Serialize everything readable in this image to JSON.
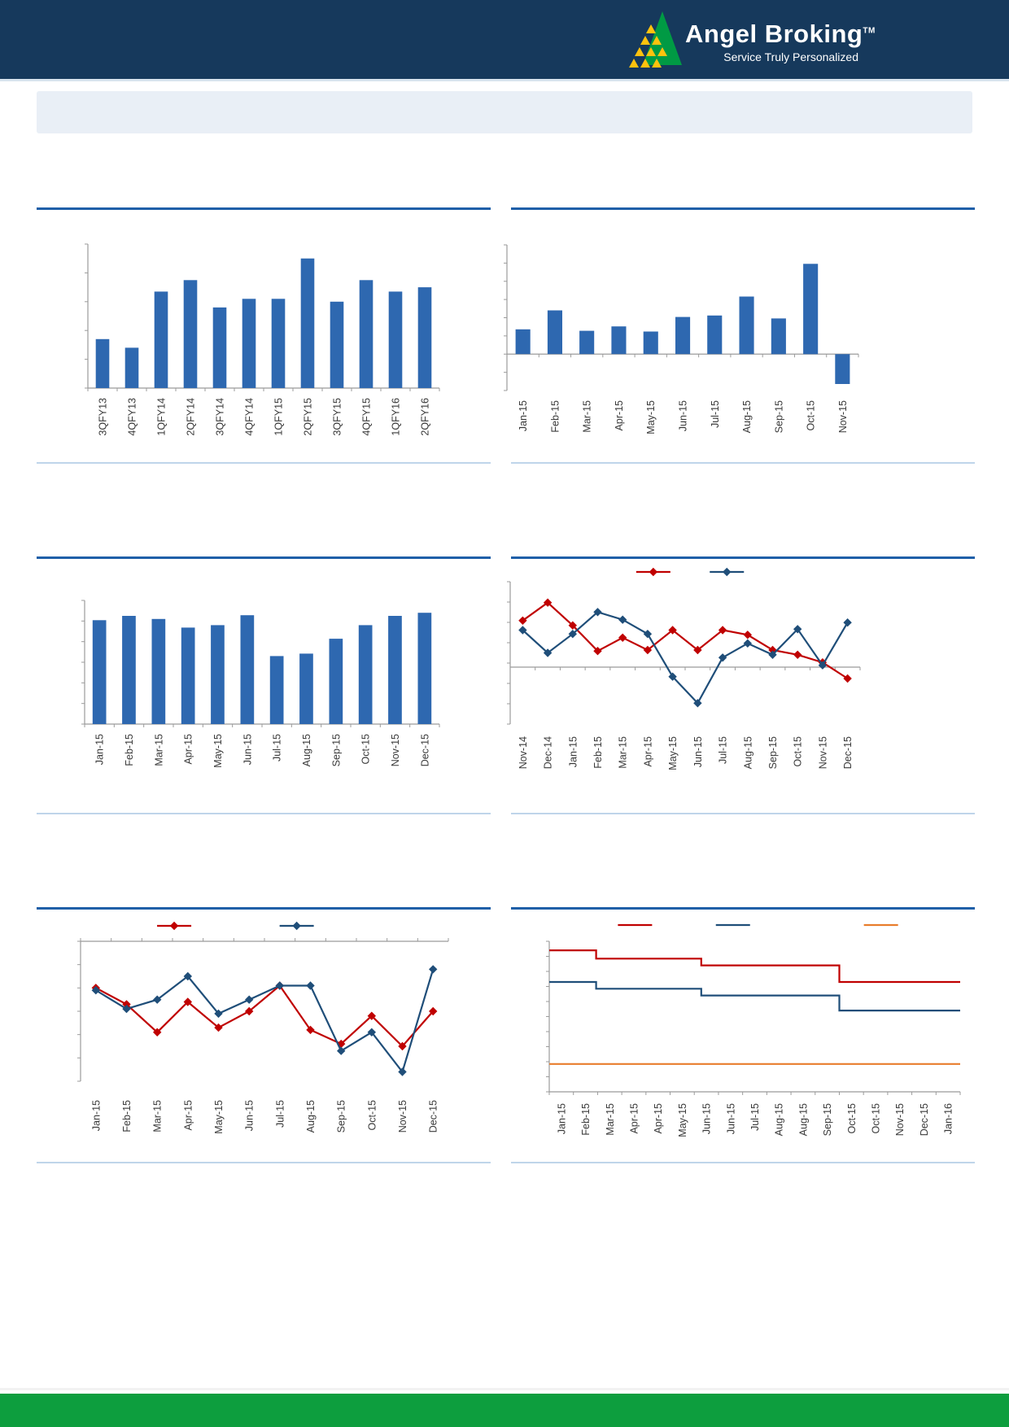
{
  "header": {
    "brand": "Angel Broking",
    "brand_tm": "TM",
    "tagline": "Service Truly Personalized"
  },
  "title_band": {
    "text": ""
  },
  "footer": {
    "text": ""
  },
  "colors": {
    "header_navy": "#16395C",
    "footer_green": "#0D9E3E",
    "bar": "#2E68B0",
    "red": "#C00000",
    "blue": "#1F4E79",
    "orange": "#E87D2C",
    "rule_dark": "#1F5FA8",
    "rule_light": "#BFD5EA",
    "axis": "#9B9B9B",
    "label": "#3A3A3A",
    "logo_green": "#009A44",
    "logo_yellow": "#FFC20E"
  },
  "chart_data": [
    {
      "type": "bar",
      "title": "",
      "source": "",
      "categories": [
        "3QFY13",
        "4QFY13",
        "1QFY14",
        "2QFY14",
        "3QFY14",
        "4QFY14",
        "1QFY15",
        "2QFY15",
        "3QFY15",
        "4QFY15",
        "1QFY16",
        "2QFY16"
      ],
      "values": [
        0.34,
        0.28,
        0.67,
        0.75,
        0.56,
        0.62,
        0.62,
        0.9,
        0.6,
        0.75,
        0.67,
        0.7
      ],
      "ylim": [
        0,
        1
      ],
      "xlabel": "",
      "ylabel": "",
      "y_tick_labels_visible": false,
      "grid": false,
      "legend_position": "none"
    },
    {
      "type": "bar",
      "title": "",
      "source": "",
      "categories": [
        "Jan-15",
        "Feb-15",
        "Mar-15",
        "Apr-15",
        "May-15",
        "Jun-15",
        "Jul-15",
        "Aug-15",
        "Sep-15",
        "Oct-15",
        "Nov-15"
      ],
      "values": [
        0.34,
        0.6,
        0.32,
        0.38,
        0.31,
        0.51,
        0.53,
        0.79,
        0.49,
        1.24,
        -0.41
      ],
      "ylim": [
        -0.5,
        1.5
      ],
      "xlabel": "",
      "ylabel": "",
      "y_tick_labels_visible": false,
      "grid": false,
      "legend_position": "none"
    },
    {
      "type": "bar",
      "title": "",
      "source": "",
      "categories": [
        "Jan-15",
        "Feb-15",
        "Mar-15",
        "Apr-15",
        "May-15",
        "Jun-15",
        "Jul-15",
        "Aug-15",
        "Sep-15",
        "Oct-15",
        "Nov-15",
        "Dec-15"
      ],
      "values": [
        0.84,
        0.875,
        0.85,
        0.78,
        0.8,
        0.88,
        0.55,
        0.57,
        0.69,
        0.8,
        0.875,
        0.9
      ],
      "ylim": [
        0,
        1
      ],
      "xlabel": "",
      "ylabel": "",
      "y_tick_labels_visible": false,
      "grid": false,
      "legend_position": "none"
    },
    {
      "type": "line",
      "title": "",
      "source": "",
      "categories": [
        "Nov-14",
        "Dec-14",
        "Jan-15",
        "Feb-15",
        "Mar-15",
        "Apr-15",
        "May-15",
        "Jun-15",
        "Jul-15",
        "Aug-15",
        "Sep-15",
        "Oct-15",
        "Nov-15",
        "Dec-15"
      ],
      "series": [
        {
          "name": "",
          "color": "red",
          "values": [
            0.49,
            0.68,
            0.44,
            0.17,
            0.31,
            0.18,
            0.39,
            0.18,
            0.39,
            0.34,
            0.18,
            0.13,
            0.05,
            -0.12
          ]
        },
        {
          "name": "",
          "color": "blue",
          "values": [
            0.39,
            0.15,
            0.35,
            0.58,
            0.5,
            0.35,
            -0.1,
            -0.38,
            0.1,
            0.25,
            0.13,
            0.4,
            0.02,
            0.47
          ]
        }
      ],
      "ylim": [
        -0.6,
        0.9
      ],
      "xlabel": "",
      "ylabel": "",
      "y_tick_labels_visible": false,
      "grid": false,
      "legend_position": "top",
      "legend_labels": [
        "",
        ""
      ]
    },
    {
      "type": "line",
      "title": "",
      "source": "",
      "categories": [
        "Jan-15",
        "Feb-15",
        "Mar-15",
        "Apr-15",
        "May-15",
        "Jun-15",
        "Jul-15",
        "Aug-15",
        "Sep-15",
        "Oct-15",
        "Nov-15",
        "Dec-15"
      ],
      "series": [
        {
          "name": "",
          "color": "red",
          "values": [
            -2.0,
            -2.7,
            -3.9,
            -2.6,
            -3.7,
            -3.0,
            -1.9,
            -3.8,
            -4.4,
            -3.2,
            -4.5,
            -3.0
          ]
        },
        {
          "name": "",
          "color": "blue",
          "values": [
            -2.1,
            -2.9,
            -2.5,
            -1.5,
            -3.1,
            -2.5,
            -1.9,
            -1.9,
            -4.7,
            -3.9,
            -5.6,
            -1.2
          ]
        }
      ],
      "ylim": [
        -6,
        0
      ],
      "category_axis": "top",
      "xlabel": "",
      "ylabel": "",
      "y_tick_labels_visible": false,
      "grid": false,
      "legend_position": "top",
      "legend_labels": [
        "",
        ""
      ]
    },
    {
      "type": "step",
      "title": "",
      "source": "",
      "categories": [
        "Jan-15",
        "Feb-15",
        "Mar-15",
        "Apr-15",
        "Apr-15",
        "May-15",
        "Jun-15",
        "Jun-15",
        "Jul-15",
        "Aug-15",
        "Aug-15",
        "Sep-15",
        "Oct-15",
        "Oct-15",
        "Nov-15",
        "Dec-15",
        "Jan-16"
      ],
      "series": [
        {
          "name": "",
          "color": "red",
          "breaks": [
            0.114,
            0.37,
            0.706
          ],
          "values": [
            9.4,
            8.85,
            8.4,
            7.3
          ]
        },
        {
          "name": "",
          "color": "blue",
          "breaks": [
            0.114,
            0.37,
            0.706
          ],
          "values": [
            7.3,
            6.85,
            6.4,
            5.4
          ]
        },
        {
          "name": "",
          "color": "orange",
          "breaks": [],
          "values": [
            1.85
          ]
        }
      ],
      "ylim": [
        0,
        10
      ],
      "xlabel": "",
      "ylabel": "",
      "y_tick_labels_visible": false,
      "grid": false,
      "legend_position": "top",
      "legend_labels": [
        "",
        "",
        ""
      ]
    }
  ]
}
